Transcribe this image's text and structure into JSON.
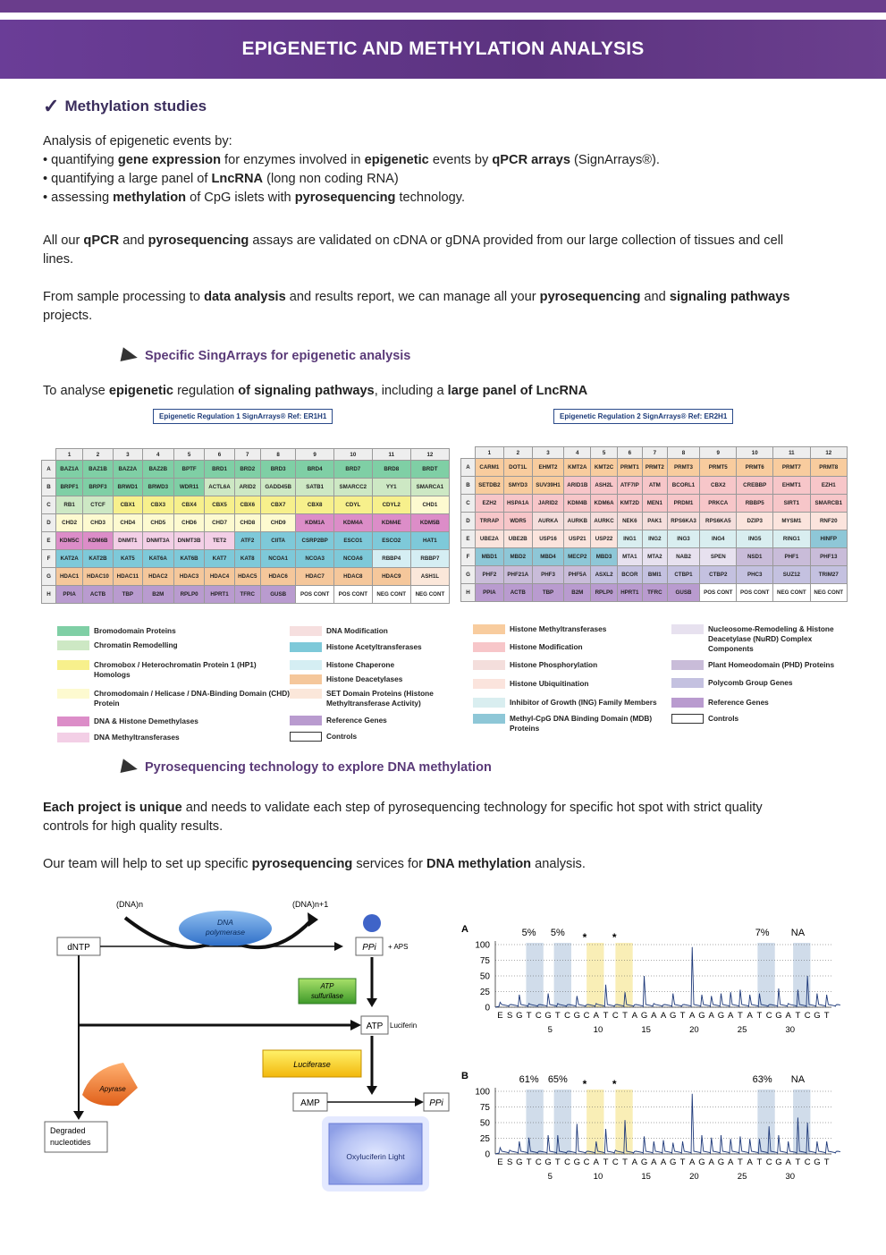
{
  "header": {
    "title": "EPIGENETIC AND METHYLATION ANALYSIS"
  },
  "section1": {
    "title": "Methylation studies"
  },
  "intro": {
    "lead": "Analysis of epigenetic events by:",
    "b1": [
      "• quantifying ",
      "gene expression",
      " for enzymes involved in ",
      "epigenetic",
      " events by ",
      "qPCR arrays",
      " (SignArrays®)."
    ],
    "b2": [
      "• quantifying a large panel of ",
      "LncRNA",
      " (long non coding RNA)"
    ],
    "b3": [
      "• assessing ",
      "methylation",
      " of CpG islets with ",
      "pyrosequencing",
      " technology."
    ]
  },
  "p2": [
    "All our ",
    "qPCR",
    " and ",
    "pyrosequencing",
    " assays are validated on cDNA or gDNA provided from our large collection of tissues and cell",
    "lines."
  ],
  "p3": [
    "From sample processing to ",
    "data analysis",
    " and results report, we can manage all your ",
    "pyrosequencing",
    " and ",
    "signaling pathways",
    "projects."
  ],
  "sub1": {
    "title": "Specific SingArrays for epigenetic analysis"
  },
  "p4": [
    "To analyse ",
    "epigenetic",
    " regulation ",
    "of signaling pathways",
    ", including a ",
    "large panel of LncRNA"
  ],
  "ref1": "Epigenetic Regulation 1     SignArrays®  Ref: ER1H1",
  "ref2": "Epigenetic Regulation 2     SignArrays®  Ref: ER2H1",
  "colors": {
    "bromo": "#7fcfa5",
    "chrom": "#cde8c4",
    "cbx": "#f7f08c",
    "chd": "#fdfad0",
    "dem": "#dc8dc8",
    "dnmt": "#f3cfe6",
    "dmod": "#f6dfdf",
    "hat": "#7ec9d9",
    "chap": "#d5eef3",
    "hdac": "#f5c79b",
    "set": "#fbe7da",
    "ref": "#b99bcf",
    "ctrl": "#ffffff",
    "hmt": "#f8cc9e",
    "hmod": "#f7c6c9",
    "hphos": "#f4dedc",
    "hubi": "#fbe4dd",
    "ing": "#d9eef0",
    "mbd": "#8ec7d7",
    "nurd": "#e7e1ef",
    "phd": "#c9bcd9",
    "pcg": "#c4c1e0"
  },
  "grid1": {
    "cols": [
      "1",
      "2",
      "3",
      "4",
      "5",
      "6",
      "7",
      "8",
      "9",
      "10",
      "11",
      "12"
    ],
    "rows": [
      {
        "r": "A",
        "cells": [
          [
            "BAZ1A",
            "bromo"
          ],
          [
            "BAZ1B",
            "bromo"
          ],
          [
            "BAZ2A",
            "bromo"
          ],
          [
            "BAZ2B",
            "bromo"
          ],
          [
            "BPTF",
            "bromo"
          ],
          [
            "BRD1",
            "bromo"
          ],
          [
            "BRD2",
            "bromo"
          ],
          [
            "BRD3",
            "bromo"
          ],
          [
            "BRD4",
            "bromo"
          ],
          [
            "BRD7",
            "bromo"
          ],
          [
            "BRD8",
            "bromo"
          ],
          [
            "BRDT",
            "bromo"
          ]
        ]
      },
      {
        "r": "B",
        "cells": [
          [
            "BRPF1",
            "bromo"
          ],
          [
            "BRPF3",
            "bromo"
          ],
          [
            "BRWD1",
            "bromo"
          ],
          [
            "BRWD3",
            "bromo"
          ],
          [
            "WDR11",
            "bromo"
          ],
          [
            "ACTL6A",
            "chrom"
          ],
          [
            "ARID2",
            "chrom"
          ],
          [
            "GADD45B",
            "chrom"
          ],
          [
            "SATB1",
            "chrom"
          ],
          [
            "SMARCC2",
            "chrom"
          ],
          [
            "YY1",
            "chrom"
          ],
          [
            "SMARCA1",
            "chrom"
          ]
        ]
      },
      {
        "r": "C",
        "cells": [
          [
            "RB1",
            "chrom"
          ],
          [
            "CTCF",
            "chrom"
          ],
          [
            "CBX1",
            "cbx"
          ],
          [
            "CBX3",
            "cbx"
          ],
          [
            "CBX4",
            "cbx"
          ],
          [
            "CBX5",
            "cbx"
          ],
          [
            "CBX6",
            "cbx"
          ],
          [
            "CBX7",
            "cbx"
          ],
          [
            "CBX8",
            "cbx"
          ],
          [
            "CDYL",
            "cbx"
          ],
          [
            "CDYL2",
            "cbx"
          ],
          [
            "CHD1",
            "chd"
          ]
        ]
      },
      {
        "r": "D",
        "cells": [
          [
            "CHD2",
            "chd"
          ],
          [
            "CHD3",
            "chd"
          ],
          [
            "CHD4",
            "chd"
          ],
          [
            "CHD5",
            "chd"
          ],
          [
            "CHD6",
            "chd"
          ],
          [
            "CHD7",
            "chd"
          ],
          [
            "CHD8",
            "chd"
          ],
          [
            "CHD9",
            "chd"
          ],
          [
            "KDM1A",
            "dem"
          ],
          [
            "KDM4A",
            "dem"
          ],
          [
            "KDM4E",
            "dem"
          ],
          [
            "KDM5B",
            "dem"
          ]
        ]
      },
      {
        "r": "E",
        "cells": [
          [
            "KDM5C",
            "dem"
          ],
          [
            "KDM6B",
            "dem"
          ],
          [
            "DNMT1",
            "dnmt"
          ],
          [
            "DNMT3A",
            "dnmt"
          ],
          [
            "DNMT3B",
            "dnmt"
          ],
          [
            "TET2",
            "dnmt"
          ],
          [
            "ATF2",
            "hat"
          ],
          [
            "CIITA",
            "hat"
          ],
          [
            "CSRP2BP",
            "hat"
          ],
          [
            "ESCO1",
            "hat"
          ],
          [
            "ESCO2",
            "hat"
          ],
          [
            "HAT1",
            "hat"
          ]
        ]
      },
      {
        "r": "F",
        "cells": [
          [
            "KAT2A",
            "hat"
          ],
          [
            "KAT2B",
            "hat"
          ],
          [
            "KAT5",
            "hat"
          ],
          [
            "KAT6A",
            "hat"
          ],
          [
            "KAT6B",
            "hat"
          ],
          [
            "KAT7",
            "hat"
          ],
          [
            "KAT8",
            "hat"
          ],
          [
            "NCOA1",
            "hat"
          ],
          [
            "NCOA3",
            "hat"
          ],
          [
            "NCOA6",
            "hat"
          ],
          [
            "RBBP4",
            "chap"
          ],
          [
            "RBBP7",
            "chap"
          ]
        ]
      },
      {
        "r": "G",
        "cells": [
          [
            "HDAC1",
            "hdac"
          ],
          [
            "HDAC10",
            "hdac"
          ],
          [
            "HDAC11",
            "hdac"
          ],
          [
            "HDAC2",
            "hdac"
          ],
          [
            "HDAC3",
            "hdac"
          ],
          [
            "HDAC4",
            "hdac"
          ],
          [
            "HDAC5",
            "hdac"
          ],
          [
            "HDAC6",
            "hdac"
          ],
          [
            "HDAC7",
            "hdac"
          ],
          [
            "HDAC8",
            "hdac"
          ],
          [
            "HDAC9",
            "hdac"
          ],
          [
            "ASH1L",
            "set"
          ]
        ]
      },
      {
        "r": "H",
        "cells": [
          [
            "PPIA",
            "ref"
          ],
          [
            "ACTB",
            "ref"
          ],
          [
            "TBP",
            "ref"
          ],
          [
            "B2M",
            "ref"
          ],
          [
            "RPLP0",
            "ref"
          ],
          [
            "HPRT1",
            "ref"
          ],
          [
            "TFRC",
            "ref"
          ],
          [
            "GUSB",
            "ref"
          ],
          [
            "POS CONT",
            "ctrl"
          ],
          [
            "POS CONT",
            "ctrl"
          ],
          [
            "NEG CONT",
            "ctrl"
          ],
          [
            "NEG CONT",
            "ctrl"
          ]
        ]
      }
    ]
  },
  "grid2": {
    "cols": [
      "1",
      "2",
      "3",
      "4",
      "5",
      "6",
      "7",
      "8",
      "9",
      "10",
      "11",
      "12"
    ],
    "rows": [
      {
        "r": "A",
        "cells": [
          [
            "CARM1",
            "hmt"
          ],
          [
            "DOT1L",
            "hmt"
          ],
          [
            "EHMT2",
            "hmt"
          ],
          [
            "KMT2A",
            "hmt"
          ],
          [
            "KMT2C",
            "hmt"
          ],
          [
            "PRMT1",
            "hmt"
          ],
          [
            "PRMT2",
            "hmt"
          ],
          [
            "PRMT3",
            "hmt"
          ],
          [
            "PRMT5",
            "hmt"
          ],
          [
            "PRMT6",
            "hmt"
          ],
          [
            "PRMT7",
            "hmt"
          ],
          [
            "PRMT8",
            "hmt"
          ]
        ]
      },
      {
        "r": "B",
        "cells": [
          [
            "SETDB2",
            "hmt"
          ],
          [
            "SMYD3",
            "hmt"
          ],
          [
            "SUV39H1",
            "hmt"
          ],
          [
            "ARID1B",
            "hmod"
          ],
          [
            "ASH2L",
            "hmod"
          ],
          [
            "ATF7IP",
            "hmod"
          ],
          [
            "ATM",
            "hmod"
          ],
          [
            "BCORL1",
            "hmod"
          ],
          [
            "CBX2",
            "hmod"
          ],
          [
            "CREBBP",
            "hmod"
          ],
          [
            "EHMT1",
            "hmod"
          ],
          [
            "EZH1",
            "hmod"
          ]
        ]
      },
      {
        "r": "C",
        "cells": [
          [
            "EZH2",
            "hmod"
          ],
          [
            "HSPA1A",
            "hmod"
          ],
          [
            "JARID2",
            "hmod"
          ],
          [
            "KDM4B",
            "hmod"
          ],
          [
            "KDM6A",
            "hmod"
          ],
          [
            "KMT2D",
            "hmod"
          ],
          [
            "MEN1",
            "hmod"
          ],
          [
            "PRDM1",
            "hmod"
          ],
          [
            "PRKCA",
            "hmod"
          ],
          [
            "RBBP5",
            "hmod"
          ],
          [
            "SIRT1",
            "hmod"
          ],
          [
            "SMARCB1",
            "hmod"
          ]
        ]
      },
      {
        "r": "D",
        "cells": [
          [
            "TRRAP",
            "hmod"
          ],
          [
            "WDR5",
            "hmod"
          ],
          [
            "AURKA",
            "hphos"
          ],
          [
            "AURKB",
            "hphos"
          ],
          [
            "AURKC",
            "hphos"
          ],
          [
            "NEK6",
            "hphos"
          ],
          [
            "PAK1",
            "hphos"
          ],
          [
            "RPS6KA3",
            "hphos"
          ],
          [
            "RPS6KA5",
            "hphos"
          ],
          [
            "DZIP3",
            "hubi"
          ],
          [
            "MYSM1",
            "hubi"
          ],
          [
            "RNF20",
            "hubi"
          ]
        ]
      },
      {
        "r": "E",
        "cells": [
          [
            "UBE2A",
            "hubi"
          ],
          [
            "UBE2B",
            "hubi"
          ],
          [
            "USP16",
            "hubi"
          ],
          [
            "USP21",
            "hubi"
          ],
          [
            "USP22",
            "hubi"
          ],
          [
            "ING1",
            "ing"
          ],
          [
            "ING2",
            "ing"
          ],
          [
            "ING3",
            "ing"
          ],
          [
            "ING4",
            "ing"
          ],
          [
            "ING5",
            "ing"
          ],
          [
            "RING1",
            "ing"
          ],
          [
            "HINFP",
            "mbd"
          ]
        ]
      },
      {
        "r": "F",
        "cells": [
          [
            "MBD1",
            "mbd"
          ],
          [
            "MBD2",
            "mbd"
          ],
          [
            "MBD4",
            "mbd"
          ],
          [
            "MECP2",
            "mbd"
          ],
          [
            "MBD3",
            "mbd"
          ],
          [
            "MTA1",
            "nurd"
          ],
          [
            "MTA2",
            "nurd"
          ],
          [
            "NAB2",
            "nurd"
          ],
          [
            "SPEN",
            "nurd"
          ],
          [
            "NSD1",
            "phd"
          ],
          [
            "PHF1",
            "phd"
          ],
          [
            "PHF13",
            "phd"
          ]
        ]
      },
      {
        "r": "G",
        "cells": [
          [
            "PHF2",
            "phd"
          ],
          [
            "PHF21A",
            "phd"
          ],
          [
            "PHF3",
            "phd"
          ],
          [
            "PHF5A",
            "phd"
          ],
          [
            "ASXL2",
            "pcg"
          ],
          [
            "BCOR",
            "pcg"
          ],
          [
            "BMI1",
            "pcg"
          ],
          [
            "CTBP1",
            "pcg"
          ],
          [
            "CTBP2",
            "pcg"
          ],
          [
            "PHC3",
            "pcg"
          ],
          [
            "SUZ12",
            "pcg"
          ],
          [
            "TRIM27",
            "pcg"
          ]
        ]
      },
      {
        "r": "H",
        "cells": [
          [
            "PPIA",
            "ref"
          ],
          [
            "ACTB",
            "ref"
          ],
          [
            "TBP",
            "ref"
          ],
          [
            "B2M",
            "ref"
          ],
          [
            "RPLP0",
            "ref"
          ],
          [
            "HPRT1",
            "ref"
          ],
          [
            "TFRC",
            "ref"
          ],
          [
            "GUSB",
            "ref"
          ],
          [
            "POS CONT",
            "ctrl"
          ],
          [
            "POS CONT",
            "ctrl"
          ],
          [
            "NEG CONT",
            "ctrl"
          ],
          [
            "NEG CONT",
            "ctrl"
          ]
        ]
      }
    ]
  },
  "legend1": [
    [
      "Bromodomain Proteins",
      "bromo"
    ],
    [
      "Chromatin Remodelling",
      "chrom"
    ],
    [
      "Chromobox / Heterochromatin Protein 1 (HP1) Homologs",
      "cbx"
    ],
    [
      "Chromodomain / Helicase / DNA-Binding Domain (CHD) Protein",
      "chd"
    ],
    [
      "DNA & Histone Demethylases",
      "dem"
    ],
    [
      "DNA Methyltransferases",
      "dnmt"
    ],
    [
      "DNA Modification",
      "dmod"
    ],
    [
      "Histone Acetyltransferases",
      "hat"
    ],
    [
      "Histone Chaperone",
      "chap"
    ],
    [
      "Histone Deacetylases",
      "hdac"
    ],
    [
      "SET Domain Proteins (Histone Methyltransferase Activity)",
      "set"
    ],
    [
      "Reference Genes",
      "ref"
    ],
    [
      "Controls",
      "ctrl"
    ]
  ],
  "legend2": [
    [
      "Histone Methyltransferases",
      "hmt"
    ],
    [
      "Histone Modification",
      "hmod"
    ],
    [
      "Histone Phosphorylation",
      "hphos"
    ],
    [
      "Histone Ubiquitination",
      "hubi"
    ],
    [
      "Inhibitor of Growth (ING) Family Members",
      "ing"
    ],
    [
      "Methyl-CpG DNA Binding Domain (MDB) Proteins",
      "mbd"
    ],
    [
      "Nucleosome-Remodeling & Histone Deacetylase (NuRD) Complex Components",
      "nurd"
    ],
    [
      "Plant Homeodomain (PHD) Proteins",
      "phd"
    ],
    [
      "Polycomb Group Genes",
      "pcg"
    ],
    [
      "Reference Genes",
      "ref"
    ],
    [
      "Controls",
      "ctrl"
    ]
  ],
  "sub2": {
    "title": "Pyrosequencing technology to explore DNA methylation"
  },
  "p5": [
    "Each project is unique",
    " and needs to validate each step of pyrosequencing technology for specific hot spot with strict quality",
    "controls for high quality results."
  ],
  "p6": [
    "Our team will help to set up specific ",
    "pyrosequencing",
    " services for ",
    "DNA methylation",
    " analysis."
  ],
  "diagram": {
    "dnan": "(DNA)n",
    "dnan1": "(DNA)n+1",
    "polymerase": "DNA polymerase",
    "dntp": "dNTP",
    "ppi": "PPi",
    "aps": "+ APS",
    "atpsulf": "ATP sulfurilase",
    "atp": "ATP",
    "luciferin": "Luciferin",
    "luciferase": "Luciferase",
    "apyrase": "Apyrase",
    "amp": "AMP",
    "ppi2": "PPi",
    "degraded": "Degraded nucleotides",
    "light": "Oxyluciferin Light"
  },
  "pyro": {
    "sequence": "E S G T C G T C G C A T C T A G A A G T A G A G A T A T C G A T C G T",
    "xticks": [
      "5",
      "10",
      "15",
      "20",
      "25",
      "30"
    ],
    "yticks": [
      "100",
      "75",
      "50",
      "25",
      "0"
    ],
    "A": {
      "label": "A",
      "annotations": [
        "5%",
        "5%",
        "*",
        "*",
        "7%",
        "NA"
      ]
    },
    "B": {
      "label": "B",
      "annotations": [
        "61%",
        "65%",
        "*",
        "*",
        "63%",
        "NA"
      ]
    }
  }
}
